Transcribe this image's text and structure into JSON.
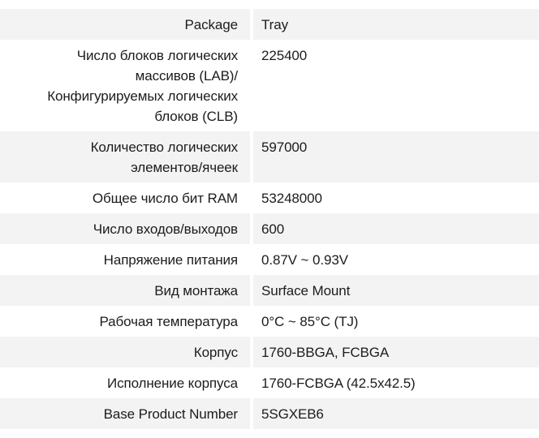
{
  "colors": {
    "row_alt_bg": "#f3f3f3",
    "row_bg": "#ffffff",
    "text": "#1c1c1c",
    "column_divider": "#ffffff"
  },
  "table": {
    "rows": [
      {
        "label": "Package",
        "value": "Tray"
      },
      {
        "label": "Число блоков логических массивов (LAB)/Конфигурируемых логических блоков (CLB)",
        "value": "225400"
      },
      {
        "label": "Количество логических элементов/ячеек",
        "value": "597000"
      },
      {
        "label": "Общее число бит RAM",
        "value": "53248000"
      },
      {
        "label": "Число входов/выходов",
        "value": "600"
      },
      {
        "label": "Напряжение питания",
        "value": "0.87V ~ 0.93V"
      },
      {
        "label": "Вид монтажа",
        "value": "Surface Mount"
      },
      {
        "label": "Рабочая температура",
        "value": "0°C ~ 85°C (TJ)"
      },
      {
        "label": "Корпус",
        "value": "1760-BBGA, FCBGA"
      },
      {
        "label": "Исполнение корпуса",
        "value": "1760-FCBGA (42.5x42.5)"
      },
      {
        "label": "Base Product Number",
        "value": "5SGXEB6"
      }
    ]
  }
}
